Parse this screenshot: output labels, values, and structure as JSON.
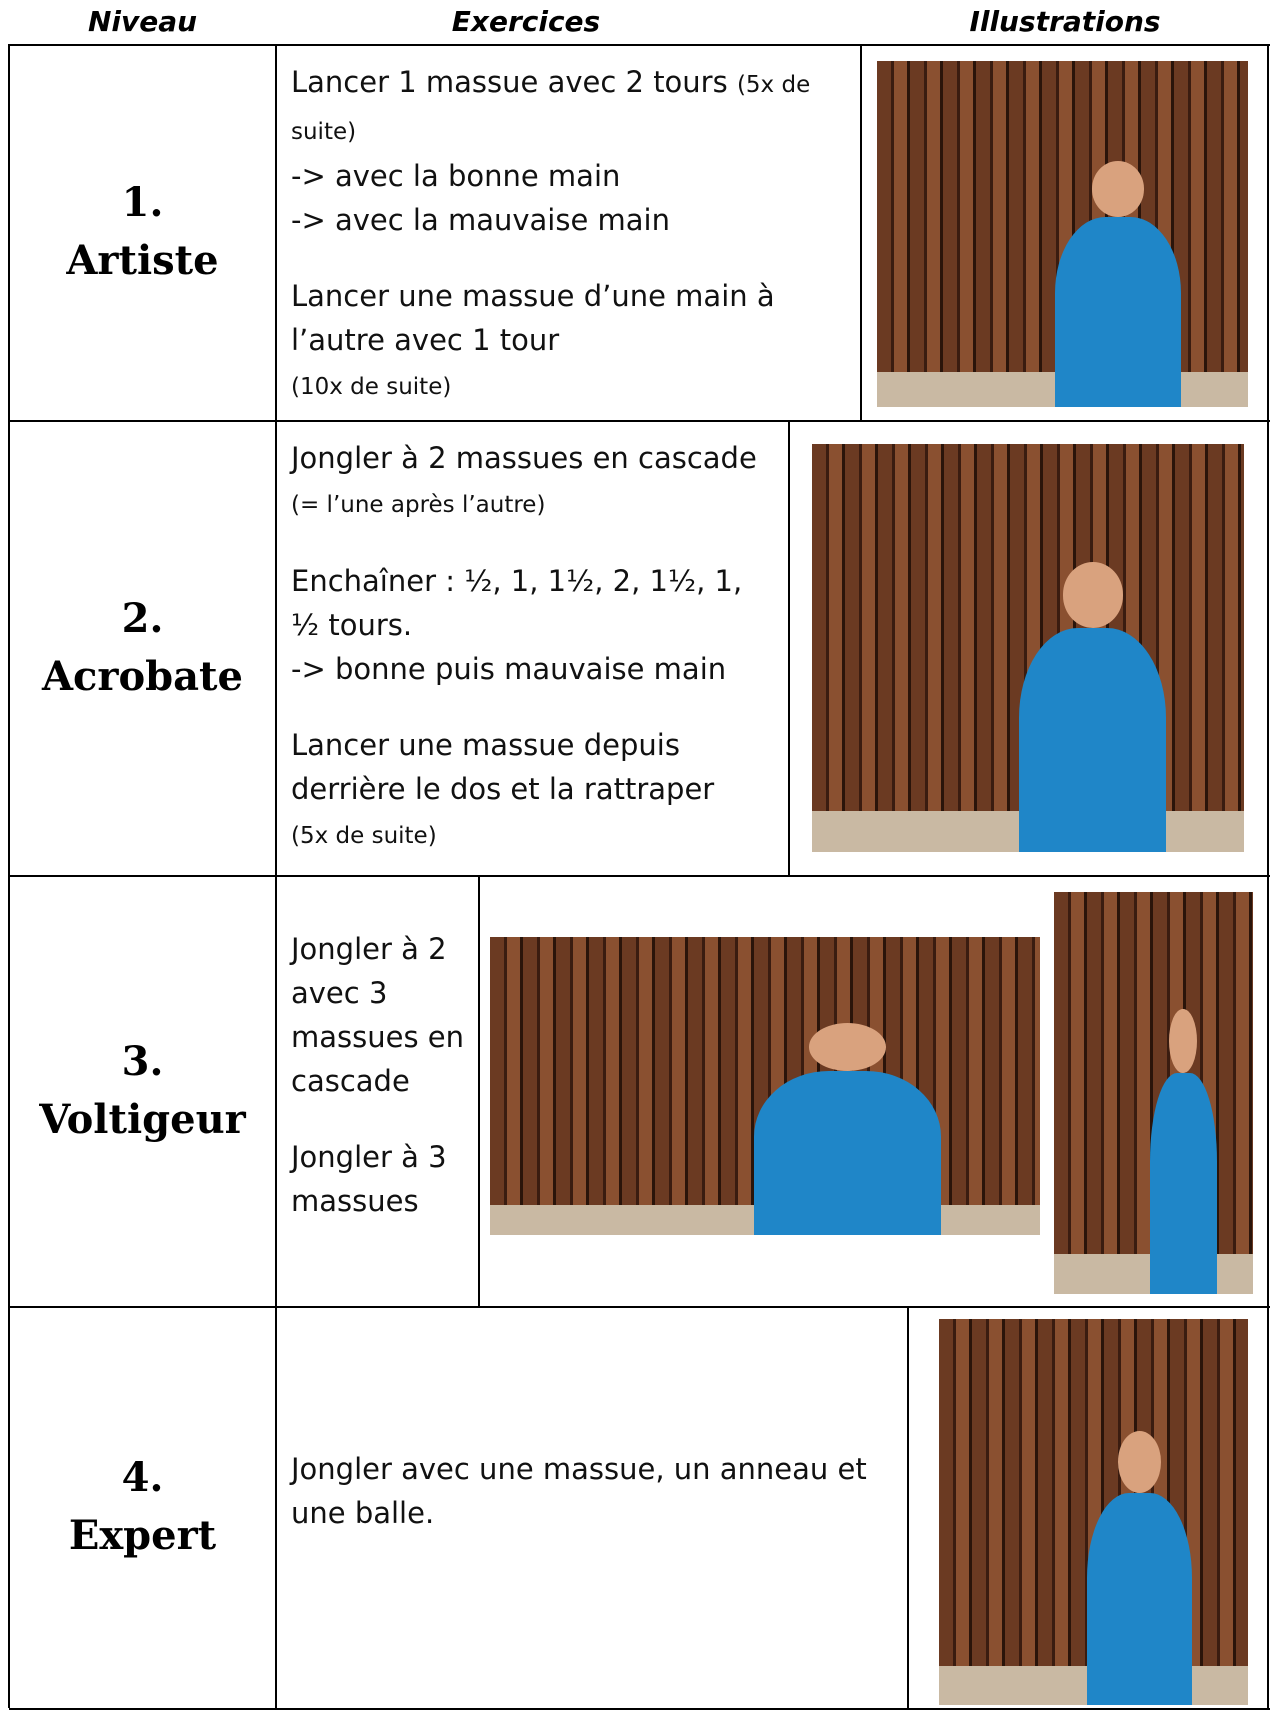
{
  "header": {
    "columns": [
      "Niveau",
      "Exercices",
      "Illustrations"
    ]
  },
  "rows": [
    {
      "number": "1.",
      "level": "Artiste",
      "blocks": [
        [
          {
            "text": "Lancer 1 massue avec 2 tours",
            "note": "(5x de suite)"
          },
          {
            "text": "-> avec la bonne main"
          },
          {
            "text": "-> avec la mauvaise main"
          }
        ],
        [
          {
            "text": "Lancer une massue d’une main à l’autre avec 1 tour"
          },
          {
            "note": "(10x de suite)"
          }
        ]
      ]
    },
    {
      "number": "2.",
      "level": "Acrobate",
      "blocks": [
        [
          {
            "text": "Jongler à 2 massues en cascade"
          },
          {
            "note": "(= l’une après l’autre)"
          }
        ],
        [
          {
            "text": "Enchaîner : ½, 1, 1½, 2, 1½, 1, ½ tours."
          },
          {
            "text": "-> bonne puis mauvaise main"
          }
        ],
        [
          {
            "text": "Lancer une massue depuis derrière le dos et la rattraper"
          },
          {
            "note": "(5x de suite)"
          }
        ]
      ]
    },
    {
      "number": "3.",
      "level": "Voltigeur",
      "blocks": [
        [
          {
            "text": "Jongler à 2 avec 3 massues en cascade"
          }
        ],
        [
          {
            "text": "Jongler à 3 massues"
          }
        ]
      ]
    },
    {
      "number": "4.",
      "level": "Expert",
      "blocks": [
        [
          {
            "text": "Jongler avec une massue, un anneau et une balle."
          }
        ]
      ]
    }
  ]
}
